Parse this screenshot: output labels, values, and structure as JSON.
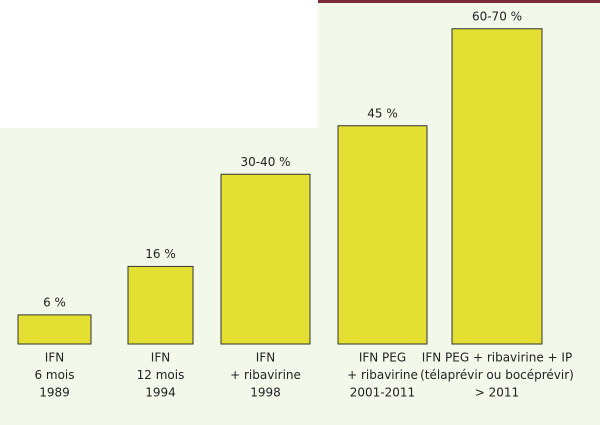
{
  "chart_data": {
    "type": "bar",
    "categories": [
      [
        "IFN",
        "6 mois",
        "1989"
      ],
      [
        "IFN",
        "12 mois",
        "1994"
      ],
      [
        "IFN",
        "+ ribavirine",
        "1998"
      ],
      [
        "IFN PEG",
        "+ ribavirine",
        "2001-2011"
      ],
      [
        "IFN PEG + ribavirine + IP",
        "(télaprévir ou bocéprévir)",
        "> 2011"
      ]
    ],
    "values": [
      6,
      16,
      35,
      45,
      65
    ],
    "value_labels": [
      "6 %",
      "16 %",
      "30-40  %",
      "45 %",
      "60-70 %"
    ],
    "color": "#e3df33"
  }
}
